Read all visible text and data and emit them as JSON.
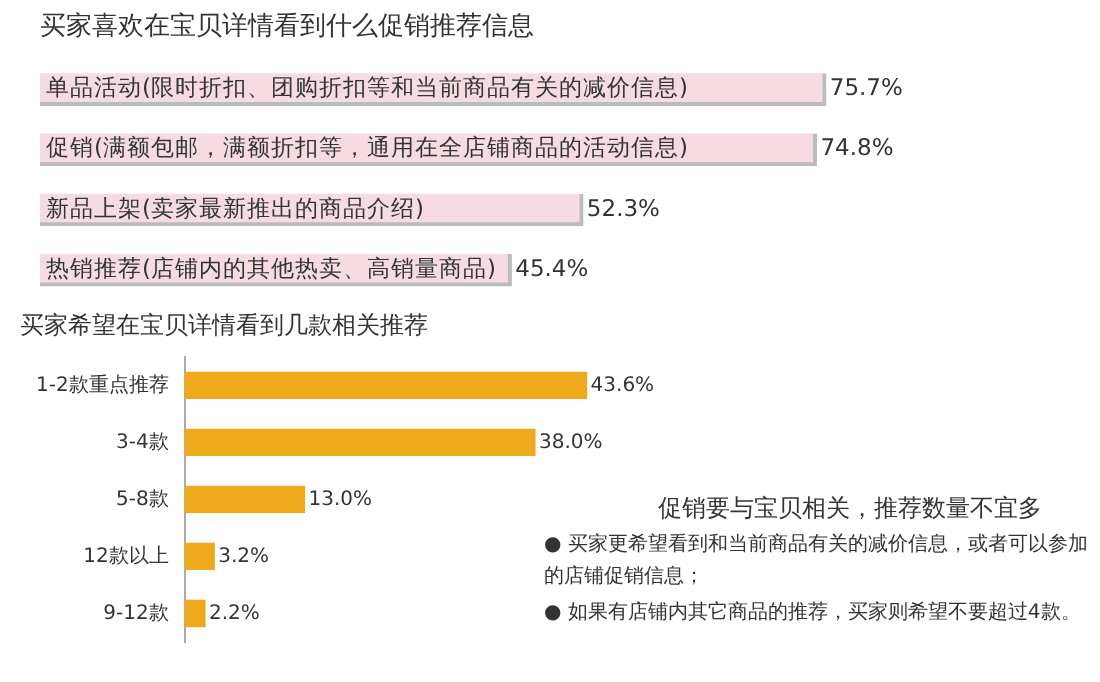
{
  "chart_data": [
    {
      "type": "bar",
      "orientation": "horizontal",
      "title": "买家喜欢在宝贝详情看到什么促销推荐信息",
      "categories": [
        "单品活动(限时折扣、团购折扣等和当前商品有关的减价信息)",
        "促销(满额包邮，满额折扣等，通用在全店铺商品的活动信息)",
        "新品上架(卖家最新推出的商品介绍)",
        "热销推荐(店铺内的其他热卖、高销量商品)"
      ],
      "values": [
        75.7,
        74.8,
        52.3,
        45.4
      ],
      "value_labels": [
        "75.7%",
        "74.8%",
        "52.3%",
        "45.4%"
      ],
      "color": "#f6dce2",
      "tick_labels": "y"
    },
    {
      "type": "bar",
      "orientation": "horizontal",
      "title": "买家希望在宝贝详情看到几款相关推荐",
      "categories": [
        "1-2款重点推荐",
        "3-4款",
        "5-8款",
        "12款以上",
        "9-12款"
      ],
      "values": [
        43.6,
        38.0,
        13.0,
        3.2,
        2.2
      ],
      "value_labels": [
        "43.6%",
        "38.0%",
        "13.0%",
        "3.2%",
        "2.2%"
      ],
      "color": "#efa91c",
      "tick_labels": "y",
      "annotations": [
        "促销要与宝贝相关，推荐数量不宜多",
        "● 买家更希望看到和当前商品有关的减价信息，或者可以参加的店铺促销信息；",
        "● 如果有店铺内其它商品的推荐，买家则希望不要超过4款。"
      ]
    }
  ]
}
